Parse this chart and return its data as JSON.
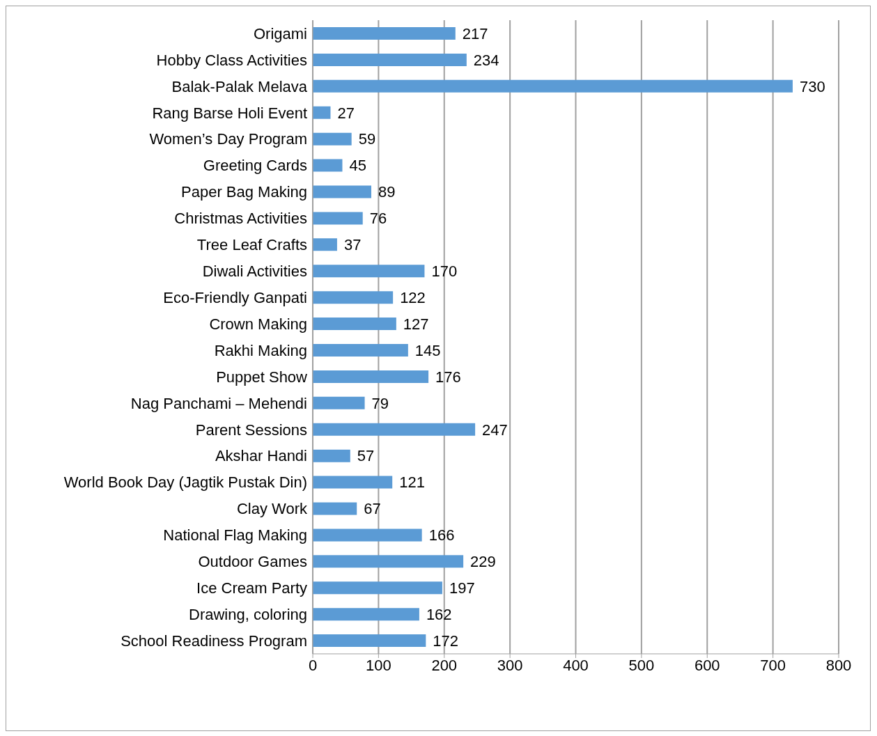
{
  "chart_data": {
    "type": "bar",
    "orientation": "horizontal",
    "categories": [
      "Origami",
      "Hobby Class Activities",
      "Balak-Palak Melava",
      "Rang Barse Holi Event",
      "Women’s Day Program",
      "Greeting Cards",
      "Paper Bag Making",
      "Christmas Activities",
      "Tree Leaf Crafts",
      "Diwali Activities",
      "Eco-Friendly Ganpati",
      "Crown Making",
      "Rakhi Making",
      "Puppet Show",
      "Nag Panchami – Mehendi",
      "Parent Sessions",
      "Akshar Handi",
      "World Book Day (Jagtik Pustak Din)",
      "Clay Work",
      "National Flag Making",
      "Outdoor Games",
      "Ice Cream Party",
      "Drawing, coloring",
      "School Readiness Program"
    ],
    "values": [
      217,
      234,
      730,
      27,
      59,
      45,
      89,
      76,
      37,
      170,
      122,
      127,
      145,
      176,
      79,
      247,
      57,
      121,
      67,
      166,
      229,
      197,
      162,
      172
    ],
    "color": "#5b9bd5",
    "data_labels": true,
    "xlim": [
      0,
      800
    ],
    "xticks": [
      0,
      100,
      200,
      300,
      400,
      500,
      600,
      700,
      800
    ],
    "grid": "x",
    "legend": false
  }
}
